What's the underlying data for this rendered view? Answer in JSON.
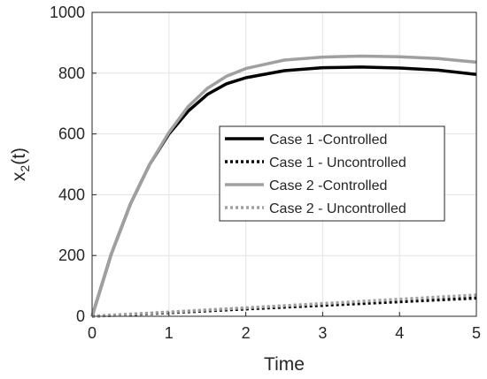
{
  "chart_data": {
    "type": "line",
    "title": "",
    "xlabel": "Time",
    "ylabel_base": "x",
    "ylabel_sub": "2",
    "ylabel_tail": "(t)",
    "xlim": [
      0,
      5
    ],
    "ylim": [
      0,
      1000
    ],
    "xticks": [
      0,
      1,
      2,
      3,
      4,
      5
    ],
    "yticks": [
      0,
      200,
      400,
      600,
      800,
      1000
    ],
    "grid": true,
    "legend_position": "center-right",
    "series": [
      {
        "name": "Case 1 -Controlled",
        "color": "#000000",
        "dash": "solid",
        "x": [
          0,
          0.25,
          0.5,
          0.75,
          1.0,
          1.25,
          1.5,
          1.75,
          2.0,
          2.5,
          3.0,
          3.5,
          4.0,
          4.5,
          5.0
        ],
        "y": [
          0,
          205,
          370,
          500,
          600,
          675,
          730,
          765,
          785,
          808,
          818,
          820,
          817,
          810,
          796
        ]
      },
      {
        "name": "Case 1 - Uncontrolled",
        "color": "#000000",
        "dash": "dotted",
        "x": [
          0,
          1,
          2,
          3,
          4,
          5
        ],
        "y": [
          0,
          12,
          24,
          36,
          48,
          60
        ]
      },
      {
        "name": "Case 2 -Controlled",
        "color": "#a0a0a0",
        "dash": "solid",
        "x": [
          0,
          0.25,
          0.5,
          0.75,
          1.0,
          1.25,
          1.5,
          1.75,
          2.0,
          2.5,
          3.0,
          3.5,
          4.0,
          4.5,
          5.0
        ],
        "y": [
          0,
          205,
          370,
          500,
          605,
          690,
          750,
          790,
          815,
          843,
          853,
          856,
          854,
          848,
          836
        ]
      },
      {
        "name": "Case 2 - Uncontrolled",
        "color": "#a0a0a0",
        "dash": "dotted",
        "x": [
          0,
          1,
          2,
          3,
          4,
          5
        ],
        "y": [
          0,
          14,
          28,
          42,
          56,
          70
        ]
      }
    ]
  }
}
